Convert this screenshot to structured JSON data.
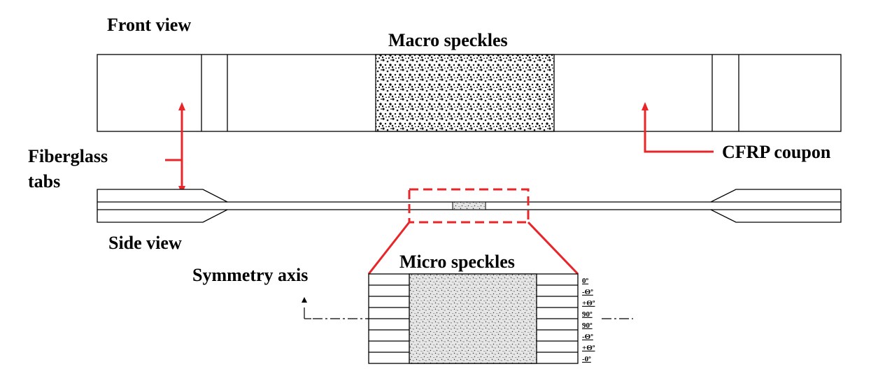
{
  "labels": {
    "front_view": "Front view",
    "macro_speckles": "Macro speckles",
    "fiberglass_line1": "Fiberglass",
    "fiberglass_line2": "tabs",
    "cfrp_coupon": "CFRP coupon",
    "side_view": "Side view",
    "micro_speckles": "Micro speckles",
    "symmetry_axis": "Symmetry axis"
  },
  "ply_stack": [
    "0º",
    "-Θº",
    "+Θº",
    "90º",
    "90º",
    "-Θº",
    "+Θº",
    "-0º"
  ],
  "colors": {
    "annotation": "#e8262a",
    "outline": "#000000"
  }
}
